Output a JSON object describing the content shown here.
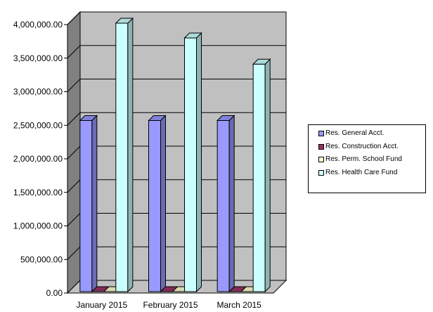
{
  "chart_data": {
    "type": "bar",
    "style": "3d-clustered-column",
    "categories": [
      "January 2015",
      "February 2015",
      "March 2015"
    ],
    "series": [
      {
        "name": "Res. General Acct.",
        "color": "#9999ff",
        "values": [
          2550000,
          2550000,
          2550000
        ]
      },
      {
        "name": "Res. Construction Acct.",
        "color": "#993366",
        "values": [
          0,
          0,
          0
        ]
      },
      {
        "name": "Res. Perm. School Fund",
        "color": "#ffffcc",
        "values": [
          0,
          0,
          0
        ]
      },
      {
        "name": "Res. Health Care Fund",
        "color": "#ccffff",
        "values": [
          4000000,
          3780000,
          3390000
        ]
      }
    ],
    "ylim": [
      0,
      4000000
    ],
    "yticks": [
      0,
      500000,
      1000000,
      1500000,
      2000000,
      2500000,
      3000000,
      3500000,
      4000000
    ],
    "ytick_labels": [
      "0.00",
      "500,000.00",
      "1,000,000.00",
      "1,500,000.00",
      "2,000,000.00",
      "2,500,000.00",
      "3,000,000.00",
      "3,500,000.00",
      "4,000,000.00"
    ],
    "grid": true,
    "legend_position": "right",
    "wall_color": "#c0c0c0"
  }
}
